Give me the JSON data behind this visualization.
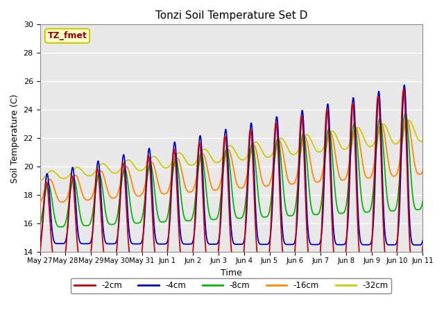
{
  "title": "Tonzi Soil Temperature Set D",
  "xlabel": "Time",
  "ylabel": "Soil Temperature (C)",
  "ylim": [
    14,
    30
  ],
  "bg_color": "#e8e8e8",
  "grid_color": "white",
  "legend_label": "TZ_fmet",
  "legend_bg": "#ffffcc",
  "legend_border": "#cccc00",
  "series_colors": {
    "-2cm": "#cc0000",
    "-4cm": "#0000cc",
    "-8cm": "#00bb00",
    "-16cm": "#ff8800",
    "-32cm": "#cccc00"
  },
  "x_tick_labels": [
    "May 27",
    "May 28",
    "May 29",
    "May 30",
    "May 31",
    "Jun 1",
    "Jun 2",
    "Jun 3",
    "Jun 4",
    "Jun 5",
    "Jun 6",
    "Jun 7",
    "Jun 8",
    "Jun 9",
    "Jun 10",
    "Jun 11"
  ],
  "yticks": [
    14,
    16,
    18,
    20,
    22,
    24,
    26,
    28,
    30
  ]
}
